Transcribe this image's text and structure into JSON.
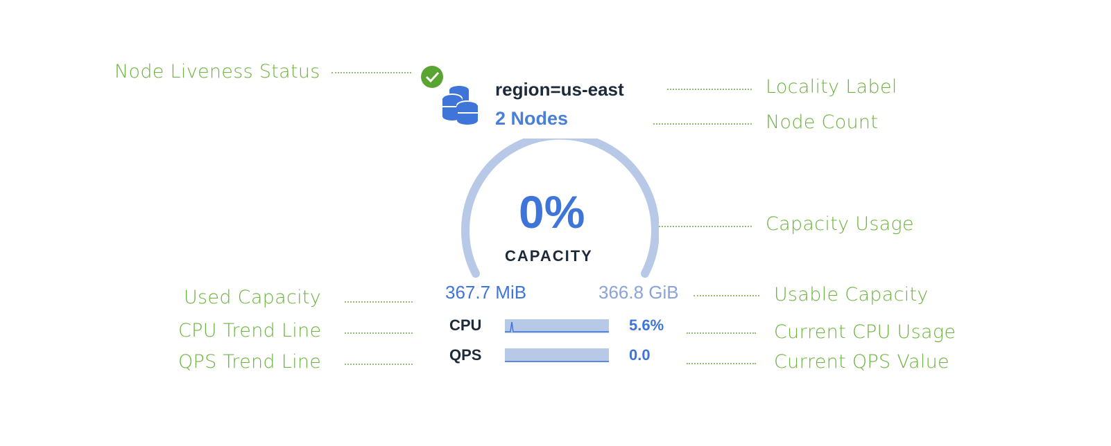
{
  "annotations": {
    "liveness": "Node Liveness Status",
    "locality": "Locality Label",
    "node_count": "Node Count",
    "capacity_usage": "Capacity Usage",
    "used_capacity": "Used Capacity",
    "usable_capacity": "Usable Capacity",
    "cpu_trend": "CPU Trend Line",
    "current_cpu": "Current CPU Usage",
    "qps_trend": "QPS Trend Line",
    "current_qps": "Current QPS Value"
  },
  "widget": {
    "liveness_status": "live",
    "locality": "region=us-east",
    "node_count": "2 Nodes",
    "capacity_percent": "0%",
    "capacity_label": "CAPACITY",
    "capacity_fraction": 0,
    "used": "367.7 MiB",
    "usable": "366.8 GiB",
    "cpu_label": "CPU",
    "cpu_value": "5.6%",
    "qps_label": "QPS",
    "qps_value": "0.0"
  },
  "colors": {
    "annotation": "#6db33f",
    "accent": "#3f74d8",
    "gauge": "#b8c9e8",
    "live": "#5aa532"
  }
}
